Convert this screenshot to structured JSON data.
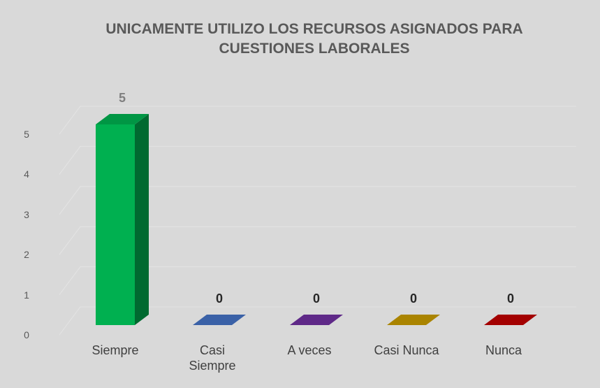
{
  "chart_data": {
    "type": "bar3d",
    "title": "UNICAMENTE UTILIZO LOS RECURSOS ASIGNADOS PARA CUESTIONES LABORALES",
    "categories": [
      "Siempre",
      "Casi Siempre",
      "A veces",
      "Casi Nunca",
      "Nunca"
    ],
    "values": [
      5,
      0,
      0,
      0,
      0
    ],
    "colors": [
      "#00b050",
      "#4472c4",
      "#7030a0",
      "#c89b00",
      "#c00000"
    ],
    "ylim": [
      0,
      5
    ],
    "yticks": [
      0,
      1,
      2,
      3,
      4,
      5
    ],
    "grid": true
  }
}
